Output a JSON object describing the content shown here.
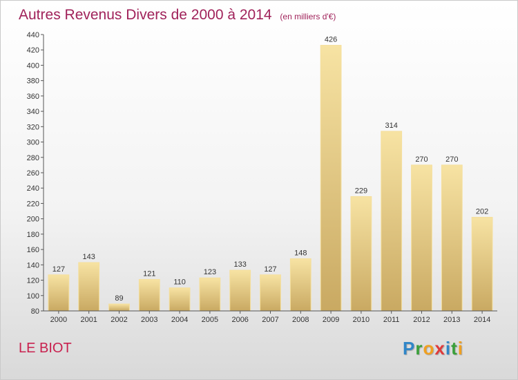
{
  "chart_data": {
    "type": "bar",
    "title": "Autres Revenus Divers de 2000 à 2014",
    "subtitle": "(en milliers d'€)",
    "categories": [
      "2000",
      "2001",
      "2002",
      "2003",
      "2004",
      "2005",
      "2006",
      "2007",
      "2008",
      "2009",
      "2010",
      "2011",
      "2012",
      "2013",
      "2014"
    ],
    "values": [
      127,
      143,
      89,
      121,
      110,
      123,
      133,
      127,
      148,
      426,
      229,
      314,
      270,
      270,
      202
    ],
    "ylim": [
      80,
      440
    ],
    "yticks": [
      80,
      100,
      120,
      140,
      160,
      180,
      200,
      220,
      240,
      260,
      280,
      300,
      320,
      340,
      360,
      380,
      400,
      420,
      440
    ],
    "grid": false,
    "data_labels": true,
    "colors": {
      "bar_light": "#f7e3a3",
      "bar_dark": "#c9a962",
      "title": "#a0225a",
      "location": "#c8204e"
    }
  },
  "footer": {
    "location": "LE BIOT"
  },
  "logo": {
    "letters": [
      {
        "ch": "P",
        "color": "#2f86c8"
      },
      {
        "ch": "r",
        "color": "#3aa03a"
      },
      {
        "ch": "o",
        "color": "#f0a020"
      },
      {
        "ch": "x",
        "color": "#e03a3a"
      },
      {
        "ch": "i",
        "color": "#2f86c8"
      },
      {
        "ch": "t",
        "color": "#3aa03a"
      },
      {
        "ch": "i",
        "color": "#f0a020"
      }
    ]
  }
}
